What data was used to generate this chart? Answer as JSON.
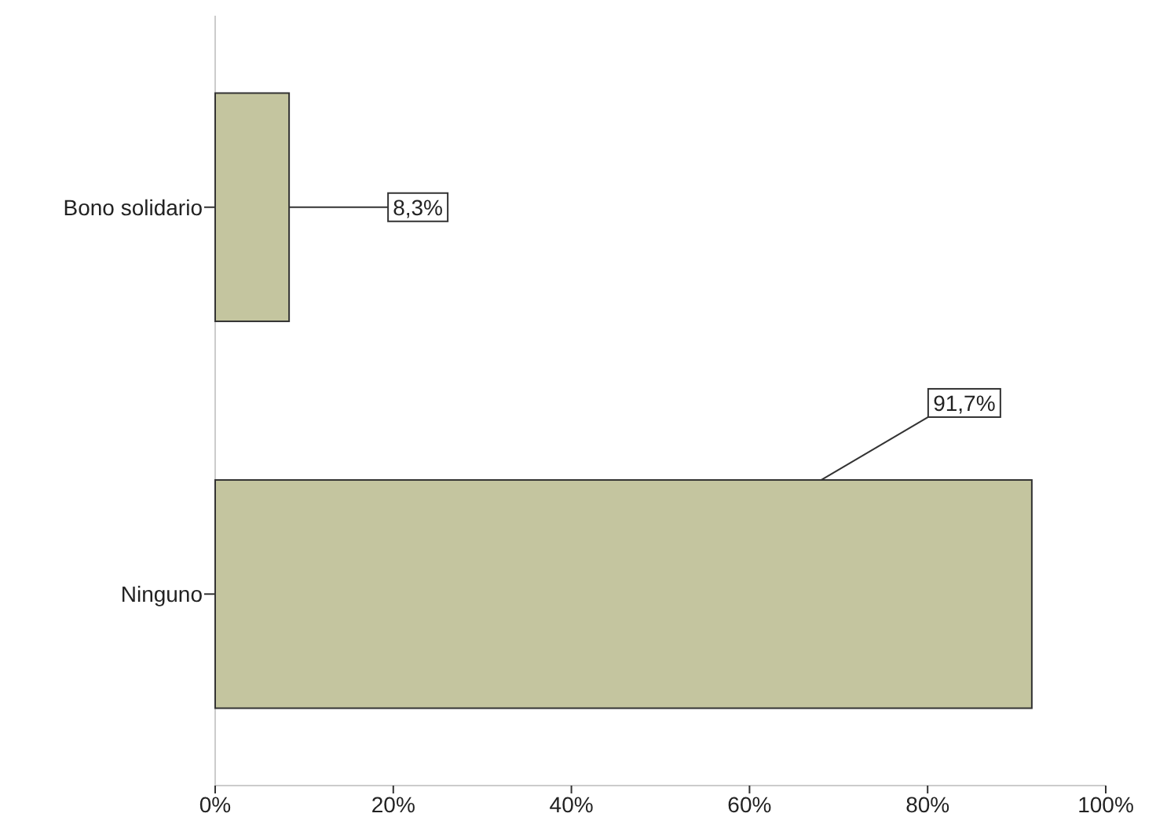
{
  "chart_data": {
    "type": "bar",
    "orientation": "horizontal",
    "categories": [
      "Bono solidario",
      "Ninguno"
    ],
    "values": [
      8.3,
      91.7
    ],
    "value_labels": [
      "8,3%",
      "91,7%"
    ],
    "color": "#c4c59f",
    "xlim": [
      0,
      100
    ],
    "xticks": [
      {
        "value": 0,
        "label": "0%"
      },
      {
        "value": 20,
        "label": "20%"
      },
      {
        "value": 40,
        "label": "40%"
      },
      {
        "value": 60,
        "label": "60%"
      },
      {
        "value": 80,
        "label": "80%"
      },
      {
        "value": 100,
        "label": "100%"
      }
    ],
    "grid": false
  }
}
